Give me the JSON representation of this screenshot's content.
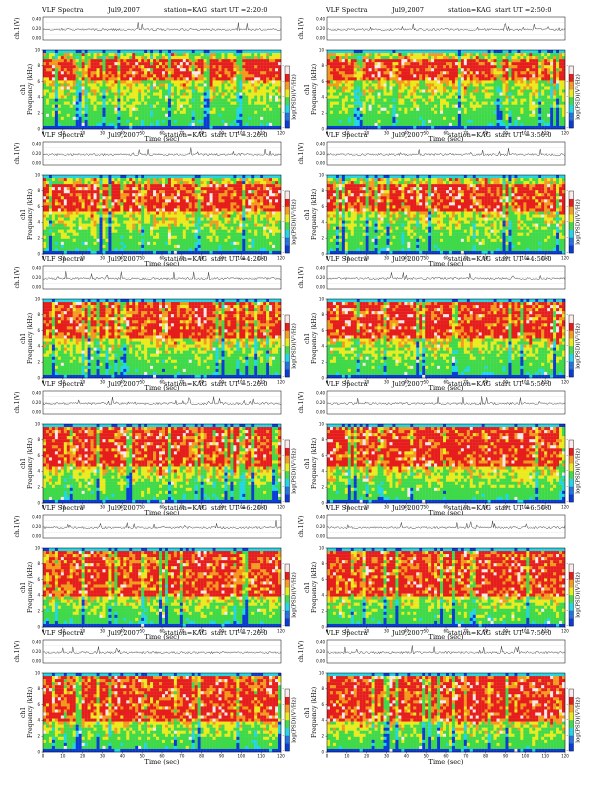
{
  "colors": {
    "low": "#0b3cd6",
    "cyan": "#22d6e6",
    "green": "#3fd94a",
    "yellow": "#eaea1c",
    "orange": "#f39a1e",
    "red": "#e61d1d",
    "max": "#fbe9e9",
    "trace": "#222222"
  },
  "axes": {
    "x_ticks": [
      "0",
      "10",
      "20",
      "30",
      "40",
      "50",
      "60",
      "70",
      "80",
      "90",
      "100",
      "110",
      "120"
    ],
    "y_ticks": [
      "0",
      "2",
      "4",
      "6",
      "8",
      "10"
    ],
    "amp_ticks": [
      "0.00",
      "0.20",
      "0.40"
    ],
    "colorbar_ticks": [
      "-",
      "-",
      "-",
      "-",
      "-"
    ]
  },
  "panels": [
    {
      "title": "VLF Spectra",
      "date": "Jul9,2007",
      "station": "station=KAG",
      "start": "start UT =2:20:0",
      "xlabel": "Time (sec)",
      "ylabel": "Frequency (kHz)",
      "channel": "ch1",
      "amp_label": "ch.1(V)",
      "colorbar_label": "log(PSD)(V²/Hz)"
    },
    {
      "title": "VLF Spectra",
      "date": "Jul9,2007",
      "station": "station=KAG",
      "start": "start UT =2:50:0",
      "xlabel": "Time (sec)",
      "ylabel": "Frequency (kHz)",
      "channel": "ch1",
      "amp_label": "ch.1(V)",
      "colorbar_label": "log(PSD)(V²/Hz)"
    },
    {
      "title": "VLF Spectra",
      "date": "Jul9,2007",
      "station": "station=KAG",
      "start": "start UT =3:20:0",
      "xlabel": "Time (sec)",
      "ylabel": "Frequency (kHz)",
      "channel": "ch1",
      "amp_label": "ch.1(V)",
      "colorbar_label": "log(PSD)(V²/Hz)"
    },
    {
      "title": "VLF Spectra",
      "date": "Jul9,2007",
      "station": "station=KAG",
      "start": "start UT =3:50:0",
      "xlabel": "Time (sec)",
      "ylabel": "Frequency (kHz)",
      "channel": "ch1",
      "amp_label": "ch.1(V)",
      "colorbar_label": "log(PSD)(V²/Hz)"
    },
    {
      "title": "VLF Spectra",
      "date": "Jul9,2007",
      "station": "station=KAG",
      "start": "start UT =4:20:0",
      "xlabel": "Time (sec)",
      "ylabel": "Frequency (kHz)",
      "channel": "ch1",
      "amp_label": "ch.1(V)",
      "colorbar_label": "log(PSD)(V²/Hz)"
    },
    {
      "title": "VLF Spectra",
      "date": "Jul9,2007",
      "station": "station=KAG",
      "start": "start UT =4:50:0",
      "xlabel": "Time (sec)",
      "ylabel": "Frequency (kHz)",
      "channel": "ch1",
      "amp_label": "ch.1(V)",
      "colorbar_label": "log(PSD)(V²/Hz)"
    },
    {
      "title": "VLF Spectra",
      "date": "Jul9,2007",
      "station": "station=KAG",
      "start": "start UT =5:20:0",
      "xlabel": "Time (sec)",
      "ylabel": "Frequency (kHz)",
      "channel": "ch1",
      "amp_label": "ch.1(V)",
      "colorbar_label": "log(PSD)(V²/Hz)"
    },
    {
      "title": "VLF Spectra",
      "date": "Jul9,2007",
      "station": "station=KAG",
      "start": "start UT =5:50:0",
      "xlabel": "Time (sec)",
      "ylabel": "Frequency (kHz)",
      "channel": "ch1",
      "amp_label": "ch.1(V)",
      "colorbar_label": "log(PSD)(V²/Hz)"
    },
    {
      "title": "VLF Spectra",
      "date": "Jul9,2007",
      "station": "station=KAG",
      "start": "start UT =6:20:0",
      "xlabel": "Time (sec)",
      "ylabel": "Frequency (kHz)",
      "channel": "ch1",
      "amp_label": "ch.1(V)",
      "colorbar_label": "log(PSD)(V²/Hz)"
    },
    {
      "title": "VLF Spectra",
      "date": "Jul9,2007",
      "station": "station=KAG",
      "start": "start UT =6:50:0",
      "xlabel": "Time (sec)",
      "ylabel": "Frequency (kHz)",
      "channel": "ch1",
      "amp_label": "ch.1(V)",
      "colorbar_label": "log(PSD)(V²/Hz)"
    },
    {
      "title": "VLF Spectra",
      "date": "Jul9,2007",
      "station": "station=KAG",
      "start": "start UT =7:20:0",
      "xlabel": "Time (sec)",
      "ylabel": "Frequency (kHz)",
      "channel": "ch1",
      "amp_label": "ch.1(V)",
      "colorbar_label": "log(PSD)(V²/Hz)"
    },
    {
      "title": "VLF Spectra",
      "date": "Jul9,2007",
      "station": "station=KAG",
      "start": "start UT =7:50:0",
      "xlabel": "Time (sec)",
      "ylabel": "Frequency (kHz)",
      "channel": "ch1",
      "amp_label": "ch.1(V)",
      "colorbar_label": "log(PSD)(V²/Hz)"
    }
  ],
  "chart_data": {
    "type": "heatmap",
    "x_range": [
      0,
      120
    ],
    "y_range": [
      0,
      10
    ],
    "amp_range": [
      0,
      0.4
    ],
    "x_unit": "sec",
    "y_unit": "kHz",
    "layout": "6 rows x 2 columns",
    "series": [
      {
        "name": "start UT =2:20:0",
        "red_band_khz": [
          6,
          9
        ]
      },
      {
        "name": "start UT =2:50:0",
        "red_band_khz": [
          6,
          9
        ]
      },
      {
        "name": "start UT =3:20:0",
        "red_band_khz": [
          5.5,
          9
        ]
      },
      {
        "name": "start UT =3:50:0",
        "red_band_khz": [
          5.5,
          9
        ]
      },
      {
        "name": "start UT =4:20:0",
        "red_band_khz": [
          5,
          9.5
        ]
      },
      {
        "name": "start UT =4:50:0",
        "red_band_khz": [
          5,
          9.5
        ]
      },
      {
        "name": "start UT =5:20:0",
        "red_band_khz": [
          4.5,
          9.5
        ]
      },
      {
        "name": "start UT =5:50:0",
        "red_band_khz": [
          4.5,
          9.5
        ]
      },
      {
        "name": "start UT =6:20:0",
        "red_band_khz": [
          4,
          9.5
        ]
      },
      {
        "name": "start UT =6:50:0",
        "red_band_khz": [
          4,
          9.5
        ]
      },
      {
        "name": "start UT =7:20:0",
        "red_band_khz": [
          4,
          9.5
        ]
      },
      {
        "name": "start UT =7:50:0",
        "red_band_khz": [
          4,
          9.5
        ]
      }
    ]
  }
}
